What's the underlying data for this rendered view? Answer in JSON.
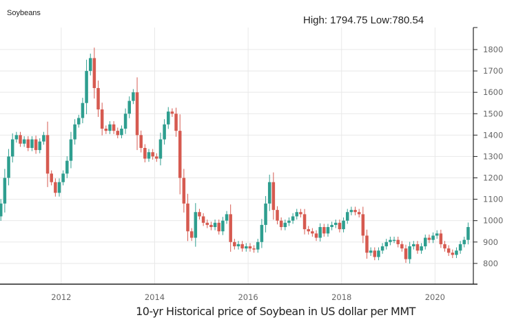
{
  "header": {
    "symbol": "Soybeans",
    "high_low": "High: 1794.75 Low:780.54"
  },
  "caption": "10-yr Historical price of Soybean in US dollar per MMT",
  "colors": {
    "up": "#2e9e8f",
    "down": "#d65a50",
    "grid": "#e8e8e8",
    "axis": "#222222"
  },
  "chart_data": {
    "type": "candlestick",
    "title": "Soybeans",
    "xlabel": "10-yr Historical price of Soybean in US dollar per MMT",
    "ylabel": "",
    "start": "2010-09",
    "interval": "month",
    "close": [
      1080,
      1200,
      1300,
      1380,
      1400,
      1360,
      1380,
      1340,
      1380,
      1330,
      1370,
      1400,
      1220,
      1180,
      1130,
      1180,
      1220,
      1280,
      1380,
      1450,
      1480,
      1550,
      1700,
      1760,
      1620,
      1520,
      1430,
      1420,
      1450,
      1420,
      1400,
      1430,
      1500,
      1560,
      1600,
      1400,
      1340,
      1290,
      1320,
      1300,
      1290,
      1380,
      1450,
      1510,
      1500,
      1420,
      1200,
      1080,
      950,
      920,
      1040,
      1020,
      990,
      980,
      970,
      990,
      950,
      1000,
      1030,
      900,
      880,
      890,
      870,
      880,
      870,
      865,
      900,
      980,
      1080,
      1180,
      1050,
      1000,
      970,
      990,
      1000,
      1020,
      1040,
      1030,
      960,
      950,
      940,
      920,
      970,
      940,
      970,
      980,
      990,
      960,
      1000,
      1040,
      1050,
      1040,
      1030,
      930,
      850,
      860,
      830,
      860,
      880,
      900,
      910,
      910,
      890,
      870,
      820,
      880,
      890,
      860,
      880,
      920,
      910,
      930,
      940,
      890,
      870,
      850,
      840,
      860,
      890,
      910,
      970
    ],
    "first_open": 1020,
    "x_ticks": [
      "2012",
      "2014",
      "2016",
      "2018",
      "2020"
    ],
    "y_ticks": [
      "800",
      "900",
      "1000",
      "1100",
      "1200",
      "1300",
      "1400",
      "1500",
      "1600",
      "1700",
      "1800"
    ],
    "ylim": [
      703,
      1903
    ],
    "xlim": [
      2010.69,
      2020.82
    ],
    "grid": true,
    "high": 1794.75,
    "low": 780.54
  }
}
